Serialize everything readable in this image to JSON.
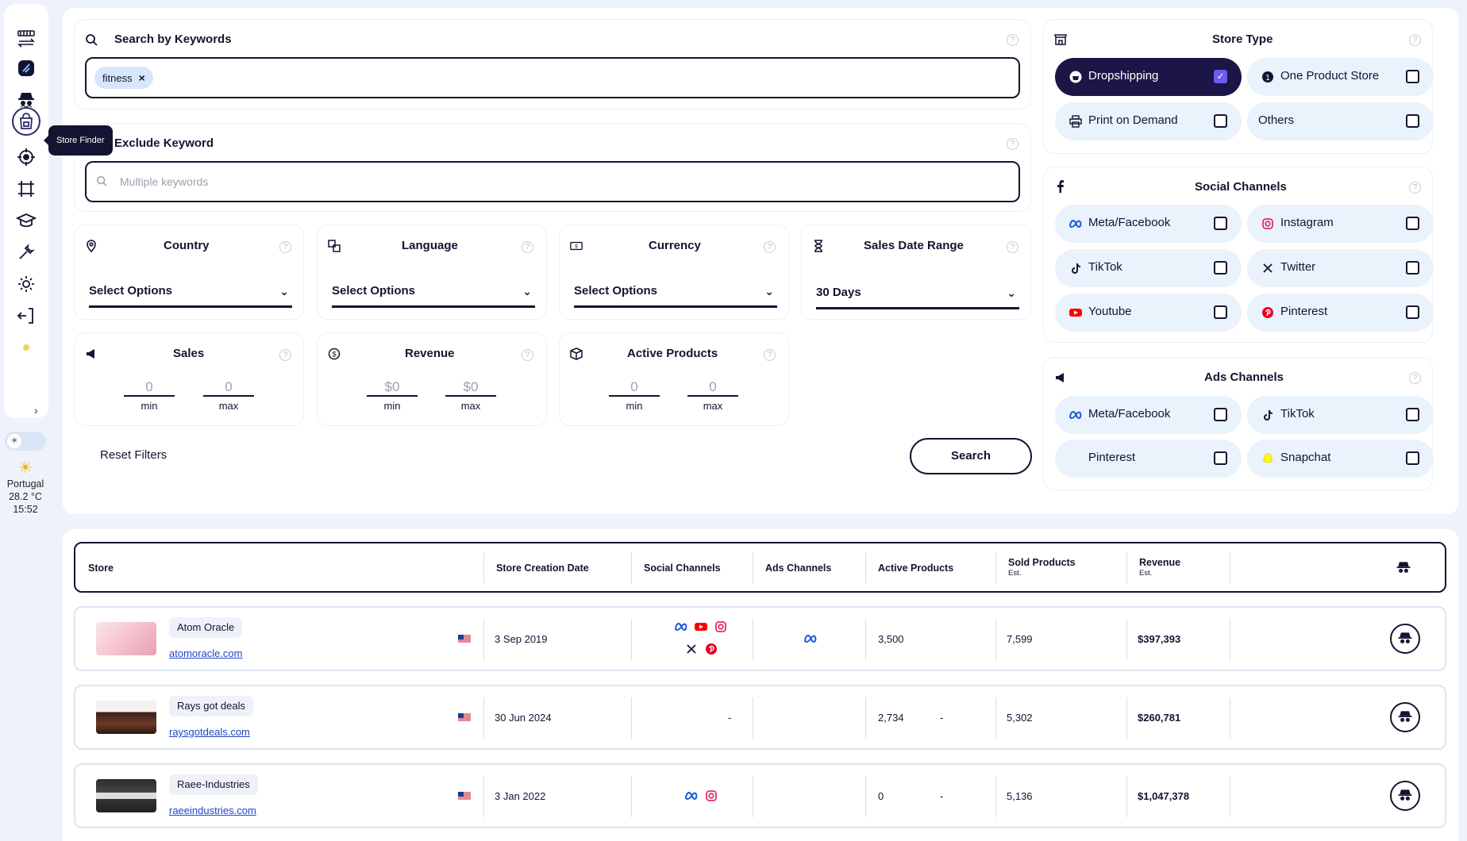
{
  "sidebar": {
    "tooltip": "Store Finder",
    "weather": {
      "location": "Portugal",
      "temp": "28.2 °C",
      "time": "15:52"
    }
  },
  "filters": {
    "keywords": {
      "title": "Search by Keywords",
      "chip": "fitness"
    },
    "exclude": {
      "title": "Exclude Keyword",
      "placeholder": "Multiple keywords"
    },
    "country": {
      "title": "Country",
      "value": "Select Options"
    },
    "language": {
      "title": "Language",
      "value": "Select Options"
    },
    "currency": {
      "title": "Currency",
      "value": "Select Options"
    },
    "sales_date": {
      "title": "Sales Date Range",
      "value": "30 Days"
    },
    "sales": {
      "title": "Sales",
      "min": "0",
      "max": "0",
      "min_label": "min",
      "max_label": "max"
    },
    "revenue": {
      "title": "Revenue",
      "min": "$0",
      "max": "$0",
      "min_label": "min",
      "max_label": "max"
    },
    "active_products": {
      "title": "Active Products",
      "min": "0",
      "max": "0",
      "min_label": "min",
      "max_label": "max"
    },
    "reset_label": "Reset Filters",
    "search_label": "Search"
  },
  "store_type": {
    "title": "Store Type",
    "options": [
      {
        "label": "Dropshipping",
        "checked": true
      },
      {
        "label": "One Product Store",
        "checked": false
      },
      {
        "label": "Print on Demand",
        "checked": false
      },
      {
        "label": "Others",
        "checked": false
      }
    ]
  },
  "social_channels": {
    "title": "Social Channels",
    "options": [
      {
        "label": "Meta/Facebook"
      },
      {
        "label": "Instagram"
      },
      {
        "label": "TikTok"
      },
      {
        "label": "Twitter"
      },
      {
        "label": "Youtube"
      },
      {
        "label": "Pinterest"
      }
    ]
  },
  "ads_channels": {
    "title": "Ads Channels",
    "options": [
      {
        "label": "Meta/Facebook"
      },
      {
        "label": "TikTok"
      },
      {
        "label": "Pinterest"
      },
      {
        "label": "Snapchat"
      }
    ]
  },
  "table": {
    "headers": {
      "store": "Store",
      "creation": "Store Creation Date",
      "social": "Social Channels",
      "ads": "Ads Channels",
      "active": "Active Products",
      "sold": "Sold Products",
      "sold_sub": "Est.",
      "revenue": "Revenue",
      "revenue_sub": "Est."
    },
    "rows": [
      {
        "name": "Atom Oracle",
        "url": "atomoracle.com",
        "date": "3 Sep 2019",
        "social_dash": "",
        "ads_dash": "",
        "active": "3,500",
        "sold": "7,599",
        "revenue": "$397,393"
      },
      {
        "name": "Rays got deals",
        "url": "raysgotdeals.com",
        "date": "30 Jun 2024",
        "social_dash": "-",
        "ads_dash": "-",
        "active": "2,734",
        "sold": "5,302",
        "revenue": "$260,781"
      },
      {
        "name": "Raee-Industries",
        "url": "raeeindustries.com",
        "date": "3 Jan 2022",
        "social_dash": "",
        "ads_dash": "-",
        "active": "0",
        "sold": "5,136",
        "revenue": "$1,047,378"
      }
    ]
  },
  "colors": {
    "dark": "#141432",
    "accent": "#6b5cf0",
    "pill": "#eaf2fc",
    "link": "#2046c8"
  }
}
